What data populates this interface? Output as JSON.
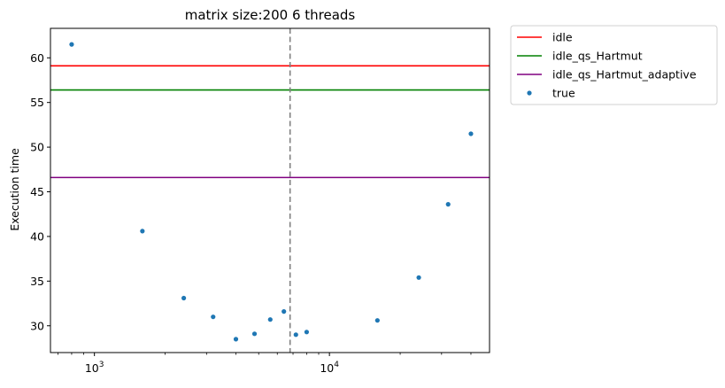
{
  "chart_data": {
    "type": "scatter",
    "title": "matrix size:200 6 threads",
    "xlabel": "",
    "ylabel": "Execution time",
    "xscale": "log",
    "xlim": [
      650,
      48000
    ],
    "ylim": [
      27,
      63.3
    ],
    "x_ticks": [
      {
        "value": 1000,
        "label": "10",
        "exp": "3"
      },
      {
        "value": 10000,
        "label": "10",
        "exp": "4"
      }
    ],
    "y_ticks": [
      30,
      35,
      40,
      45,
      50,
      55,
      60
    ],
    "grid": false,
    "legend_position": "outside-top-right",
    "hlines": [
      {
        "name": "idle",
        "y": 59.1,
        "color": "#ff0000"
      },
      {
        "name": "idle_qs_Hartmut",
        "y": 56.4,
        "color": "#008000"
      },
      {
        "name": "idle_qs_Hartmut_adaptive",
        "y": 46.6,
        "color": "#800080"
      }
    ],
    "vline": {
      "x": 6800,
      "color": "#808080",
      "style": "dashed"
    },
    "series": [
      {
        "name": "true",
        "color": "#1f77b4",
        "points": [
          {
            "x": 800,
            "y": 61.5
          },
          {
            "x": 1600,
            "y": 40.6
          },
          {
            "x": 2400,
            "y": 33.1
          },
          {
            "x": 3200,
            "y": 31.0
          },
          {
            "x": 4000,
            "y": 28.5
          },
          {
            "x": 4800,
            "y": 29.1
          },
          {
            "x": 5600,
            "y": 30.7
          },
          {
            "x": 6400,
            "y": 31.6
          },
          {
            "x": 7200,
            "y": 29.0
          },
          {
            "x": 8000,
            "y": 29.3
          },
          {
            "x": 16000,
            "y": 30.6
          },
          {
            "x": 24000,
            "y": 35.4
          },
          {
            "x": 32000,
            "y": 43.6
          },
          {
            "x": 40000,
            "y": 51.5
          }
        ]
      }
    ]
  }
}
